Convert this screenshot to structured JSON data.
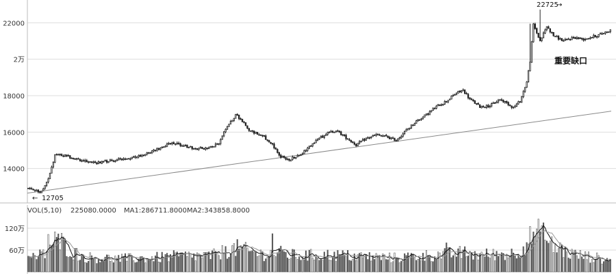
{
  "chart_data": [
    {
      "type": "candlestick",
      "price_axis": {
        "ylim": [
          12300,
          23100
        ],
        "ticks": [
          {
            "value": 14000,
            "label": "14000"
          },
          {
            "value": 16000,
            "label": "16000"
          },
          {
            "value": 18000,
            "label": "18000"
          },
          {
            "value": 20000,
            "label": "2万"
          },
          {
            "value": 22000,
            "label": "22000"
          }
        ]
      },
      "grid": true,
      "annotations": {
        "high_label": "22725",
        "high_arrow": "→",
        "low_label": "12705",
        "low_arrow": "←",
        "gap_label": "重要缺口"
      },
      "high_value": 22725,
      "low_value": 12705,
      "trendline": {
        "from": [
          0,
          12650
        ],
        "to": [
          1,
          17150
        ]
      },
      "waypoints": [
        [
          0,
          12900
        ],
        [
          4,
          12800
        ],
        [
          8,
          12740
        ],
        [
          12,
          13500
        ],
        [
          16,
          14700
        ],
        [
          20,
          14750
        ],
        [
          30,
          14500
        ],
        [
          40,
          14300
        ],
        [
          50,
          14450
        ],
        [
          60,
          14550
        ],
        [
          70,
          14800
        ],
        [
          80,
          15150
        ],
        [
          86,
          15450
        ],
        [
          92,
          15250
        ],
        [
          100,
          15100
        ],
        [
          108,
          15150
        ],
        [
          114,
          15400
        ],
        [
          118,
          16200
        ],
        [
          124,
          16950
        ],
        [
          128,
          16600
        ],
        [
          132,
          16100
        ],
        [
          140,
          15800
        ],
        [
          146,
          15300
        ],
        [
          150,
          14700
        ],
        [
          156,
          14500
        ],
        [
          162,
          14700
        ],
        [
          170,
          15400
        ],
        [
          178,
          15900
        ],
        [
          184,
          16100
        ],
        [
          190,
          15700
        ],
        [
          196,
          15300
        ],
        [
          202,
          15650
        ],
        [
          208,
          15850
        ],
        [
          214,
          15750
        ],
        [
          220,
          15550
        ],
        [
          226,
          16100
        ],
        [
          232,
          16600
        ],
        [
          238,
          16950
        ],
        [
          244,
          17400
        ],
        [
          250,
          17700
        ],
        [
          256,
          18150
        ],
        [
          260,
          18300
        ],
        [
          264,
          17800
        ],
        [
          270,
          17400
        ],
        [
          276,
          17450
        ],
        [
          282,
          17800
        ],
        [
          286,
          17600
        ],
        [
          290,
          17350
        ],
        [
          294,
          17700
        ],
        [
          298,
          18750
        ],
        [
          300,
          19900
        ],
        [
          302,
          21900
        ],
        [
          306,
          21000
        ],
        [
          310,
          21800
        ],
        [
          314,
          21300
        ],
        [
          320,
          21000
        ],
        [
          326,
          21200
        ],
        [
          332,
          21100
        ],
        [
          340,
          21300
        ],
        [
          348,
          21600
        ]
      ],
      "spikes": [
        [
          300,
          21950
        ],
        [
          306,
          22725
        ]
      ]
    },
    {
      "type": "bar",
      "legend": {
        "label": "VOL(5,10)",
        "vol": "225080.0000",
        "ma1": "MA1:286711.8000",
        "ma2": "MA2:343858.8000"
      },
      "volume_axis": {
        "ylim": [
          0,
          1500000
        ],
        "ticks": [
          {
            "value": 600000,
            "label": "60万"
          },
          {
            "value": 1200000,
            "label": "120万"
          }
        ]
      },
      "waypoints": [
        [
          0,
          350000
        ],
        [
          10,
          500000
        ],
        [
          16,
          850000
        ],
        [
          20,
          800000
        ],
        [
          26,
          550000
        ],
        [
          34,
          400000
        ],
        [
          50,
          360000
        ],
        [
          70,
          370000
        ],
        [
          90,
          430000
        ],
        [
          110,
          440000
        ],
        [
          120,
          600000
        ],
        [
          126,
          650000
        ],
        [
          132,
          550000
        ],
        [
          140,
          480000
        ],
        [
          150,
          520000
        ],
        [
          160,
          440000
        ],
        [
          180,
          460000
        ],
        [
          200,
          420000
        ],
        [
          220,
          380000
        ],
        [
          230,
          420000
        ],
        [
          240,
          450000
        ],
        [
          250,
          480000
        ],
        [
          260,
          520000
        ],
        [
          270,
          460000
        ],
        [
          290,
          500000
        ],
        [
          296,
          650000
        ],
        [
          300,
          1000000
        ],
        [
          304,
          1100000
        ],
        [
          310,
          800000
        ],
        [
          316,
          650000
        ],
        [
          324,
          500000
        ],
        [
          332,
          430000
        ],
        [
          340,
          380000
        ],
        [
          348,
          300000
        ]
      ],
      "spikes": [
        [
          6,
          430000
        ],
        [
          12,
          1030000
        ],
        [
          118,
          700000
        ],
        [
          146,
          1050000
        ],
        [
          250,
          800000
        ],
        [
          300,
          1250000
        ],
        [
          302,
          1100000
        ],
        [
          308,
          1350000
        ],
        [
          312,
          850000
        ],
        [
          318,
          800000
        ]
      ]
    }
  ],
  "colors": {
    "candle": "#222222",
    "grid": "#dddddd",
    "trend": "#888888",
    "ma1": "#111111",
    "ma2": "#999999",
    "volume_bar": "#5a5a5a",
    "volume_bar_hollow": "#ffffff"
  }
}
